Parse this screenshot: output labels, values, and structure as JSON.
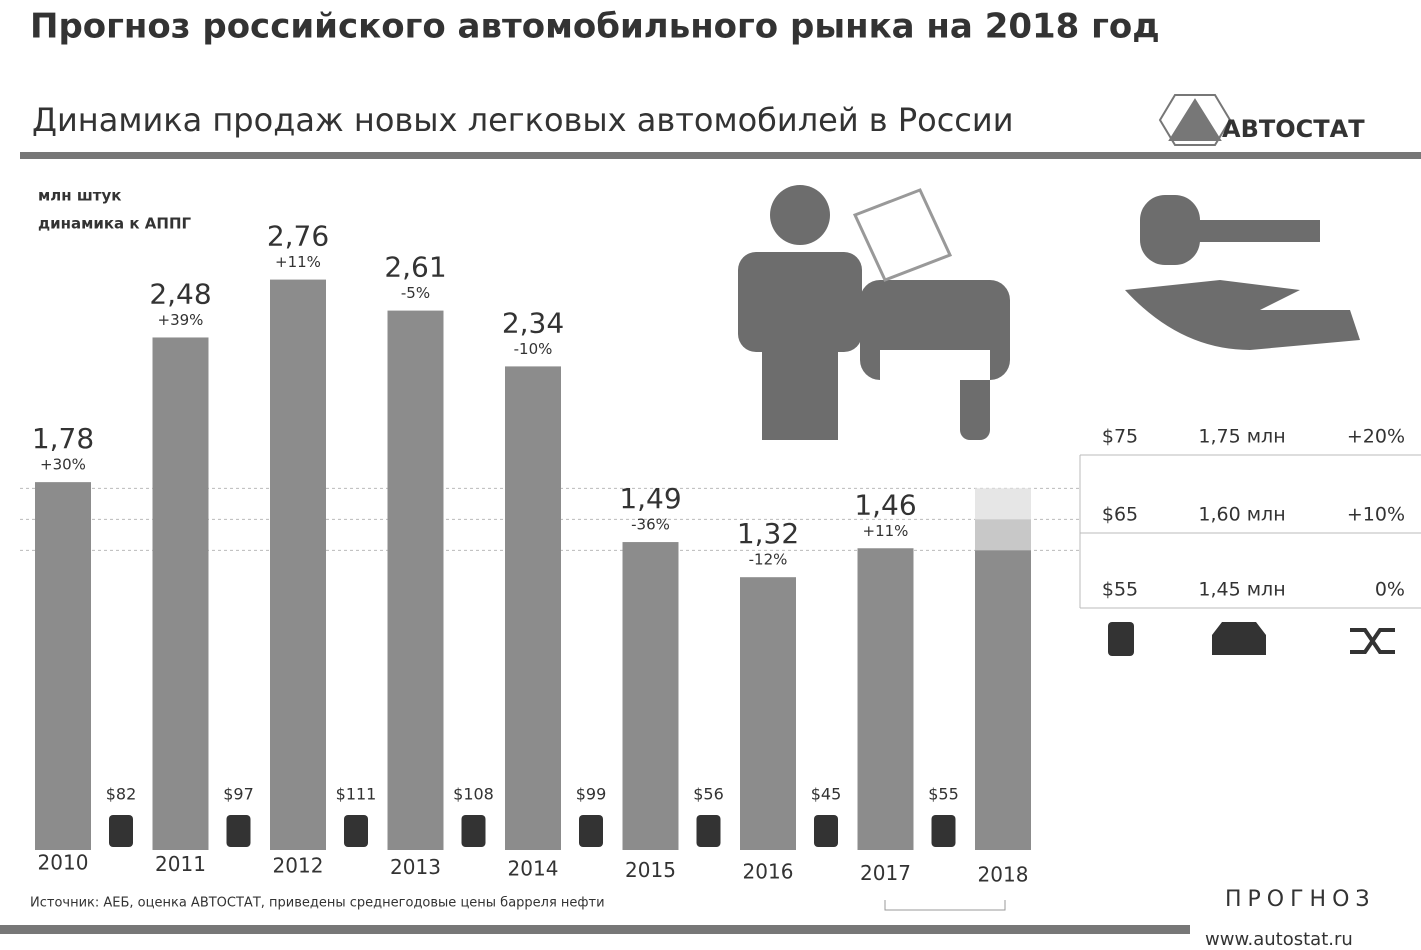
{
  "chart_data": {
    "type": "bar",
    "heading": "Прогноз российского автомобильного рынка на 2018 год",
    "title": "Динамика продаж новых легковых автомобилей в России",
    "logo": "АВТОСТАТ",
    "unit_label": "млн штук",
    "growth_label": "динамика к АППГ",
    "categories": [
      "2010",
      "2011",
      "2012",
      "2013",
      "2014",
      "2015",
      "2016",
      "2017",
      "2018"
    ],
    "values": [
      1.78,
      2.48,
      2.76,
      2.61,
      2.34,
      1.49,
      1.32,
      1.46,
      null
    ],
    "value_labels": [
      "1,78",
      "2,48",
      "2,76",
      "2,61",
      "2,34",
      "1,49",
      "1,32",
      "1,46",
      null
    ],
    "growth": {
      "values": [
        30,
        39,
        11,
        -5,
        -10,
        -36,
        -12,
        11,
        null
      ],
      "value_labels": [
        "+30%",
        "+39%",
        "+11%",
        "-5%",
        "-10%",
        "-36%",
        "-12%",
        "+11%",
        null
      ]
    },
    "oil": {
      "values": [
        82,
        97,
        111,
        108,
        99,
        56,
        45,
        55,
        null
      ],
      "value_labels": [
        "$82",
        "$97",
        "$111",
        "$108",
        "$99",
        "$56",
        "$45",
        "$55",
        null
      ]
    },
    "scenarios": {
      "oil": [
        75,
        65,
        55
      ],
      "oil_labels": [
        "$75",
        "$65",
        "$55"
      ],
      "sales": [
        1.75,
        1.6,
        1.45
      ],
      "sales_labels": [
        "1,75 млн",
        "1,60 млн",
        "1,45 млн"
      ],
      "growth": [
        20,
        10,
        0
      ],
      "growth_labels": [
        "+20%",
        "+10%",
        "0%"
      ]
    },
    "color": "#8c8c8c",
    "ylim": [
      0,
      3
    ],
    "source": "Источник: АЕБ, оценка АВТОСТАТ, приведены среднегодовые цены барреля нефти",
    "forecast_label": "ПРОГНОЗ",
    "website": "www.autostat.ru"
  }
}
